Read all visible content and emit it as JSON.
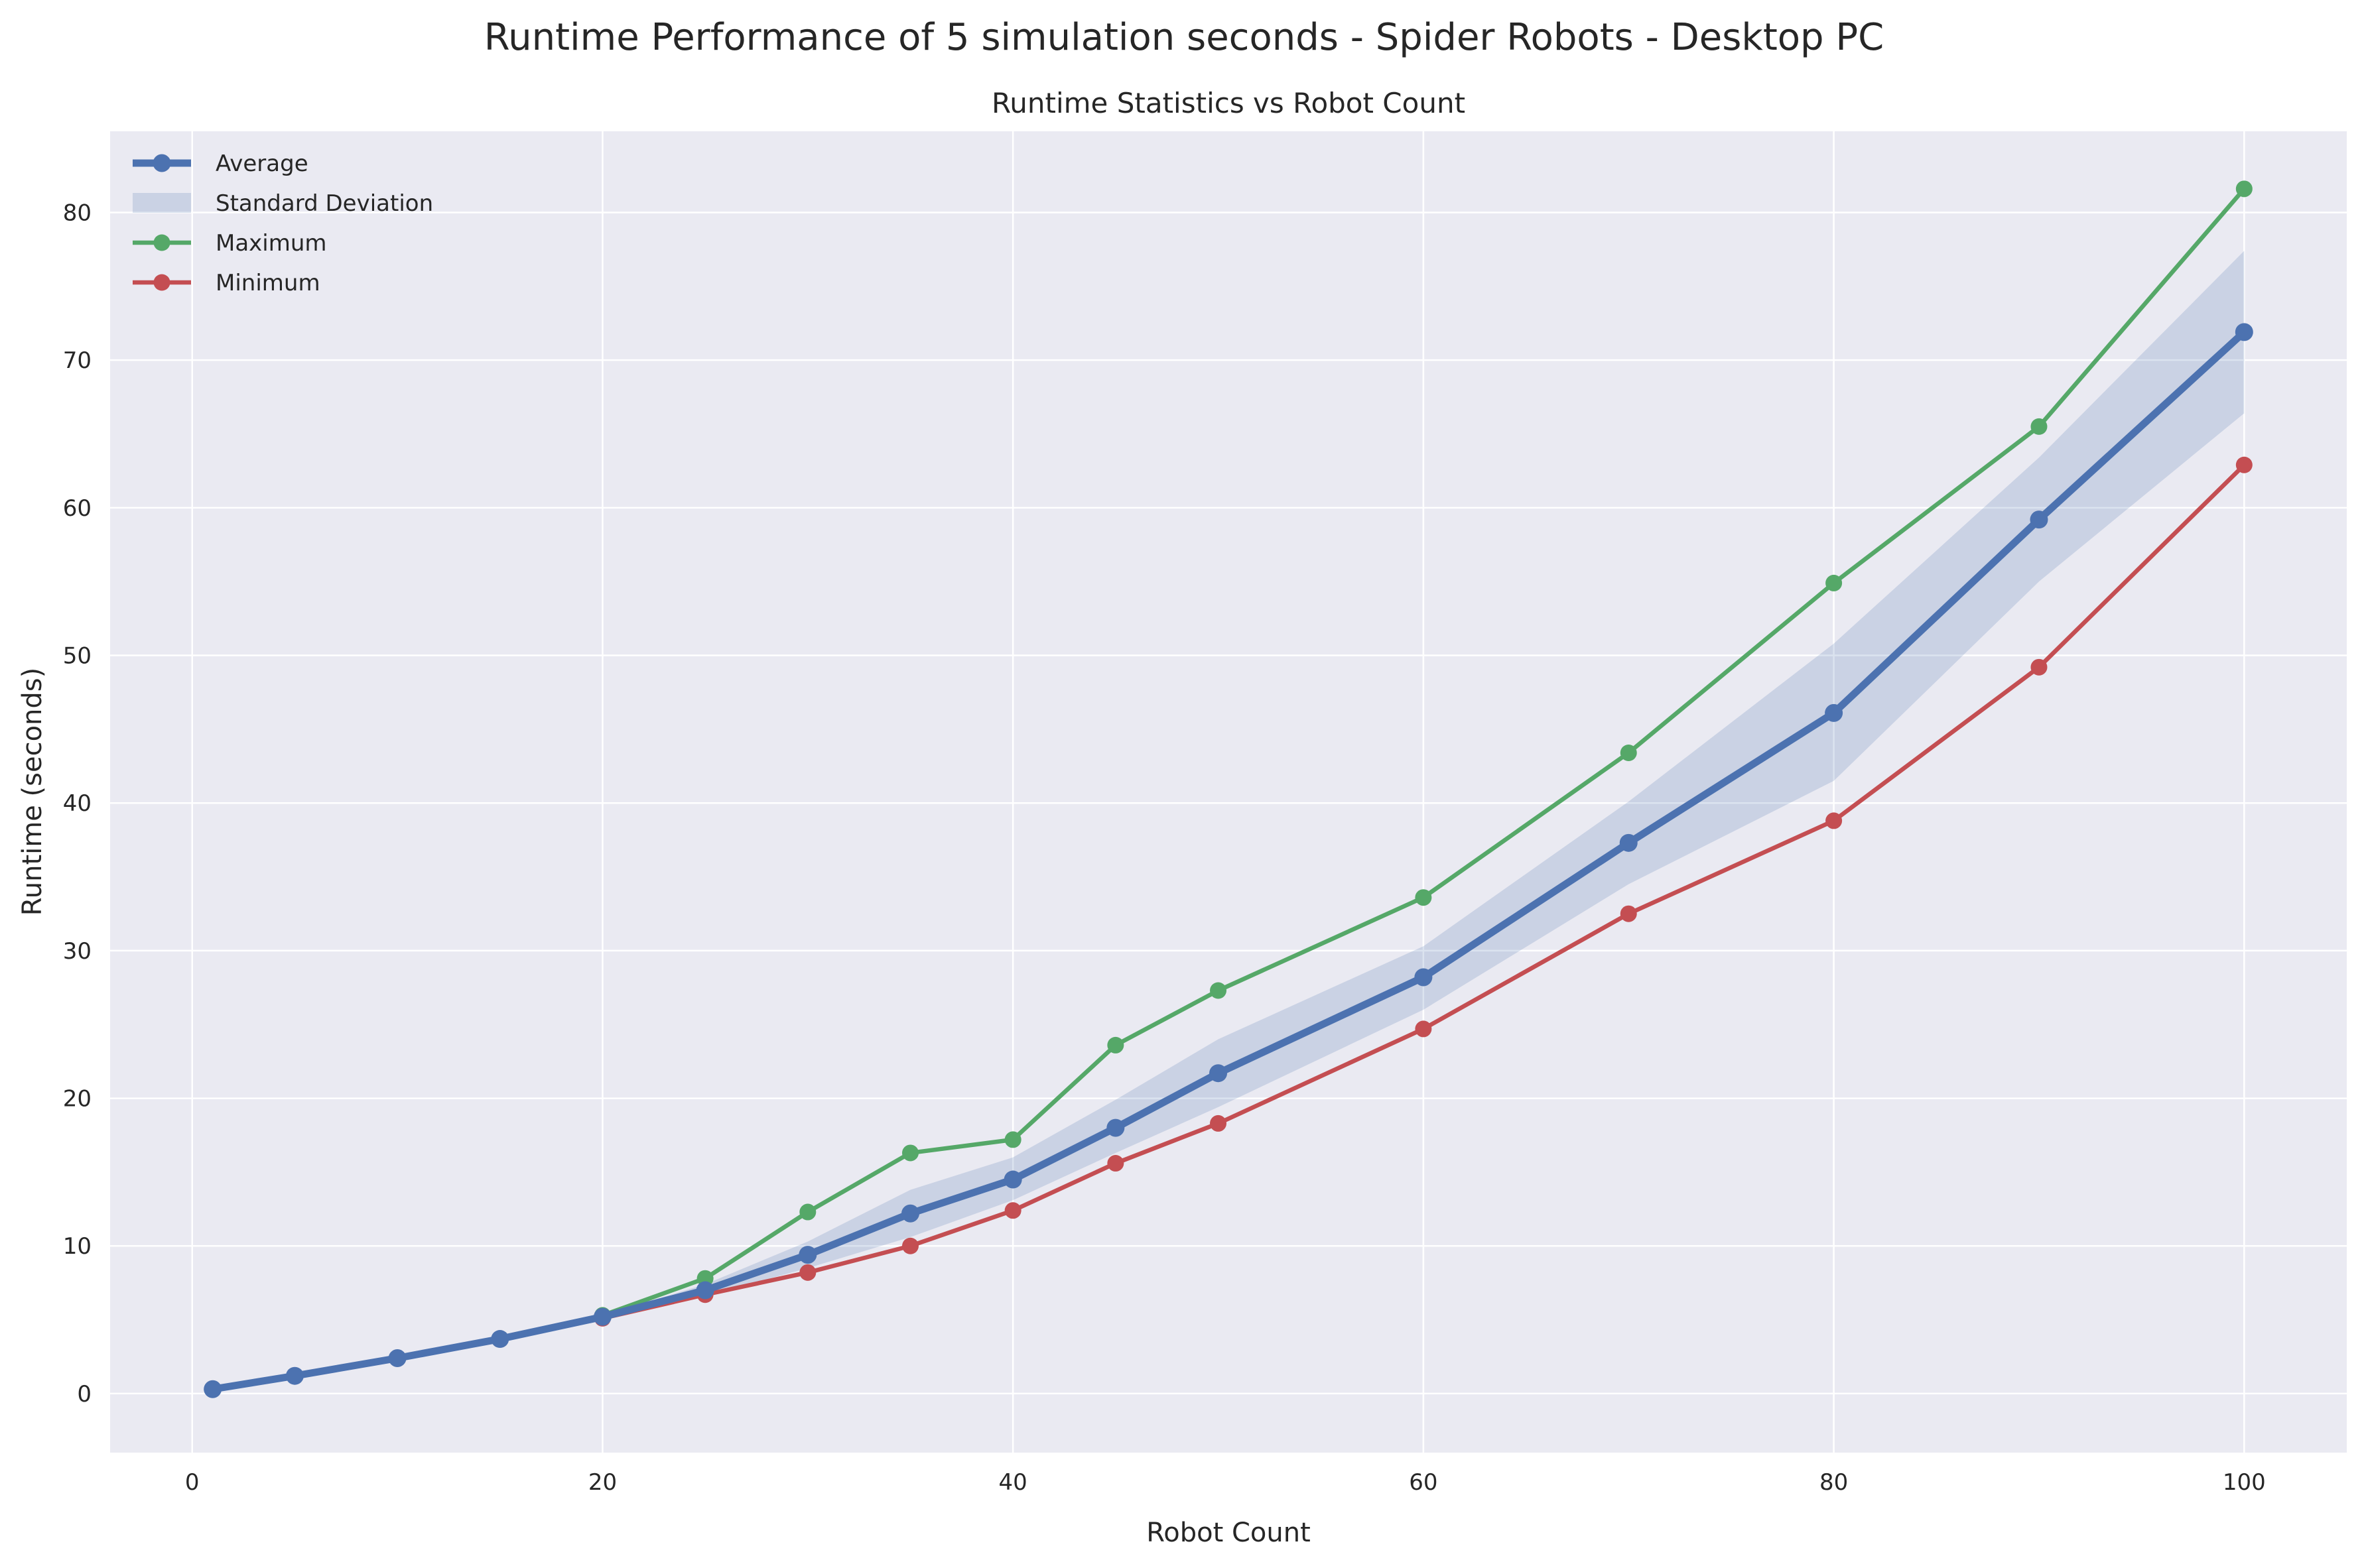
{
  "figure": {
    "suptitle": "Runtime Performance of 5 simulation seconds - Spider Robots - Desktop PC"
  },
  "chart_data": {
    "type": "line",
    "title": "Runtime Statistics vs Robot Count",
    "xlabel": "Robot Count",
    "ylabel": "Runtime (seconds)",
    "xlim": [
      -4,
      105
    ],
    "ylim": [
      -4,
      85.5
    ],
    "xticks": [
      0,
      20,
      40,
      60,
      80,
      100
    ],
    "yticks": [
      0,
      10,
      20,
      30,
      40,
      50,
      60,
      70,
      80
    ],
    "grid": true,
    "legend_position": "top-left",
    "x": [
      1,
      5,
      10,
      15,
      20,
      25,
      30,
      35,
      40,
      45,
      50,
      60,
      70,
      80,
      90,
      100
    ],
    "series": [
      {
        "name": "Average",
        "color": "#4c72b0",
        "values": [
          0.3,
          1.2,
          2.4,
          3.7,
          5.2,
          7.0,
          9.4,
          12.2,
          14.5,
          18.0,
          21.7,
          28.2,
          37.3,
          46.1,
          59.2,
          71.9
        ]
      },
      {
        "name": "Maximum",
        "color": "#55a868",
        "values": [
          0.3,
          1.2,
          2.4,
          3.7,
          5.3,
          7.8,
          12.3,
          16.3,
          17.2,
          23.6,
          27.3,
          33.6,
          43.4,
          54.9,
          65.5,
          81.6
        ]
      },
      {
        "name": "Minimum",
        "color": "#c44e52",
        "values": [
          0.3,
          1.2,
          2.4,
          3.7,
          5.1,
          6.7,
          8.2,
          10.0,
          12.4,
          15.6,
          18.3,
          24.7,
          32.5,
          38.8,
          49.2,
          62.9
        ]
      }
    ],
    "band": {
      "name": "Standard Deviation",
      "color": "#4c72b0",
      "opacity": 0.2,
      "lower": [
        0.3,
        1.2,
        2.4,
        3.7,
        5.1,
        6.6,
        8.5,
        10.6,
        13.1,
        16.3,
        19.4,
        26.0,
        34.5,
        41.5,
        55.0,
        66.4
      ],
      "upper": [
        0.3,
        1.2,
        2.4,
        3.7,
        5.3,
        7.4,
        10.3,
        13.8,
        16.0,
        19.9,
        24.0,
        30.3,
        40.1,
        50.8,
        63.4,
        77.4
      ]
    },
    "legend_order": [
      "Average",
      "Standard Deviation",
      "Maximum",
      "Minimum"
    ]
  }
}
